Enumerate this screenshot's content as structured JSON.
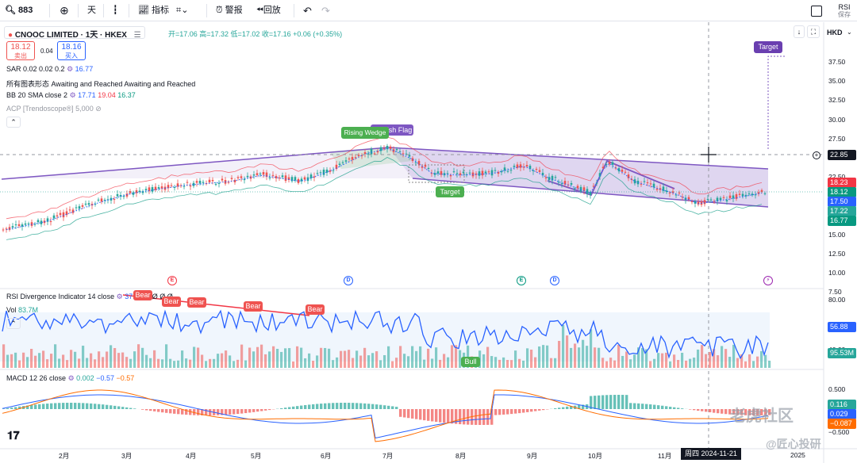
{
  "toolbar": {
    "symbol": "883",
    "interval": "天",
    "indicators": "指标",
    "alert": "警报",
    "replay": "回放",
    "side_label": "RSI",
    "side_sub": "保存"
  },
  "header": {
    "title": "CNOOC LIMITED · 1天 · HKEX",
    "ohlc": "开=17.06 高=17.32 低=17.02 收=17.16 +0.06 (+0.35%)",
    "currency": "HKD",
    "sell_price": "18.12",
    "sell_label": "卖出",
    "spread": "0.04",
    "buy_price": "18.16",
    "buy_label": "买入"
  },
  "legend": {
    "sar": "SAR 0.02 0.02 0.2",
    "sar_val": "16.77",
    "patterns": "所有图表形态 Awaiting and Reached Awaiting and Reached",
    "bb": "BB 20 SMA close 2",
    "bb_v1": "17.71",
    "bb_v2": "19.04",
    "bb_v3": "16.37",
    "acp": "ACP [Trendoscope®] 5,000"
  },
  "annotations": {
    "rising_wedge": "Rising Wedge",
    "flag": "Bearish Flag",
    "target1": "Target",
    "target2": "Target"
  },
  "price_axis": [
    "37.50",
    "35.00",
    "32.50",
    "30.00",
    "27.50",
    "25.00",
    "22.50",
    "20.00",
    "17.50",
    "15.00",
    "12.50",
    "10.00",
    "7.50"
  ],
  "price_labels": {
    "crosshair": "22.85",
    "p1": "18.23",
    "p2": "18.12",
    "p3": "17.50",
    "p4": "17.22",
    "p5": "16.77"
  },
  "rsi": {
    "legend": "RSI Divergence Indicator 14 close",
    "value": "37.97",
    "extra": "Ø Ø Ø Ø",
    "vol_label": "Vol",
    "vol_val": "83.7M",
    "bear": "Bear",
    "bull": "Bull",
    "axis_top": "80.00",
    "axis_mid": "40.00",
    "rsi_now": "56.88",
    "vol_now": "95.53M"
  },
  "macd": {
    "legend": "MACD 12 26 close",
    "v1": "0.002",
    "v2": "−0.57",
    "v3": "−0.57",
    "axis_top": "0.500",
    "axis_bottom": "−0.500",
    "label1": "0.116",
    "label2": "0.029",
    "label3": "−0.087"
  },
  "time_axis": [
    "2月",
    "3月",
    "4月",
    "5月",
    "6月",
    "7月",
    "8月",
    "9月",
    "10月",
    "11月",
    "2025"
  ],
  "crosshair_date": "周四 2024-11-21",
  "events": [
    "E",
    "D",
    "E",
    "D"
  ],
  "watermark": {
    "brand": "老虎社区",
    "author": "@匠心投研"
  },
  "colors": {
    "up": "#26a69a",
    "down": "#ef5350",
    "pattern": "#7e57c2",
    "bb_upper": "#f23645",
    "bb_lower": "#089981",
    "rsi_line": "#2962ff"
  }
}
